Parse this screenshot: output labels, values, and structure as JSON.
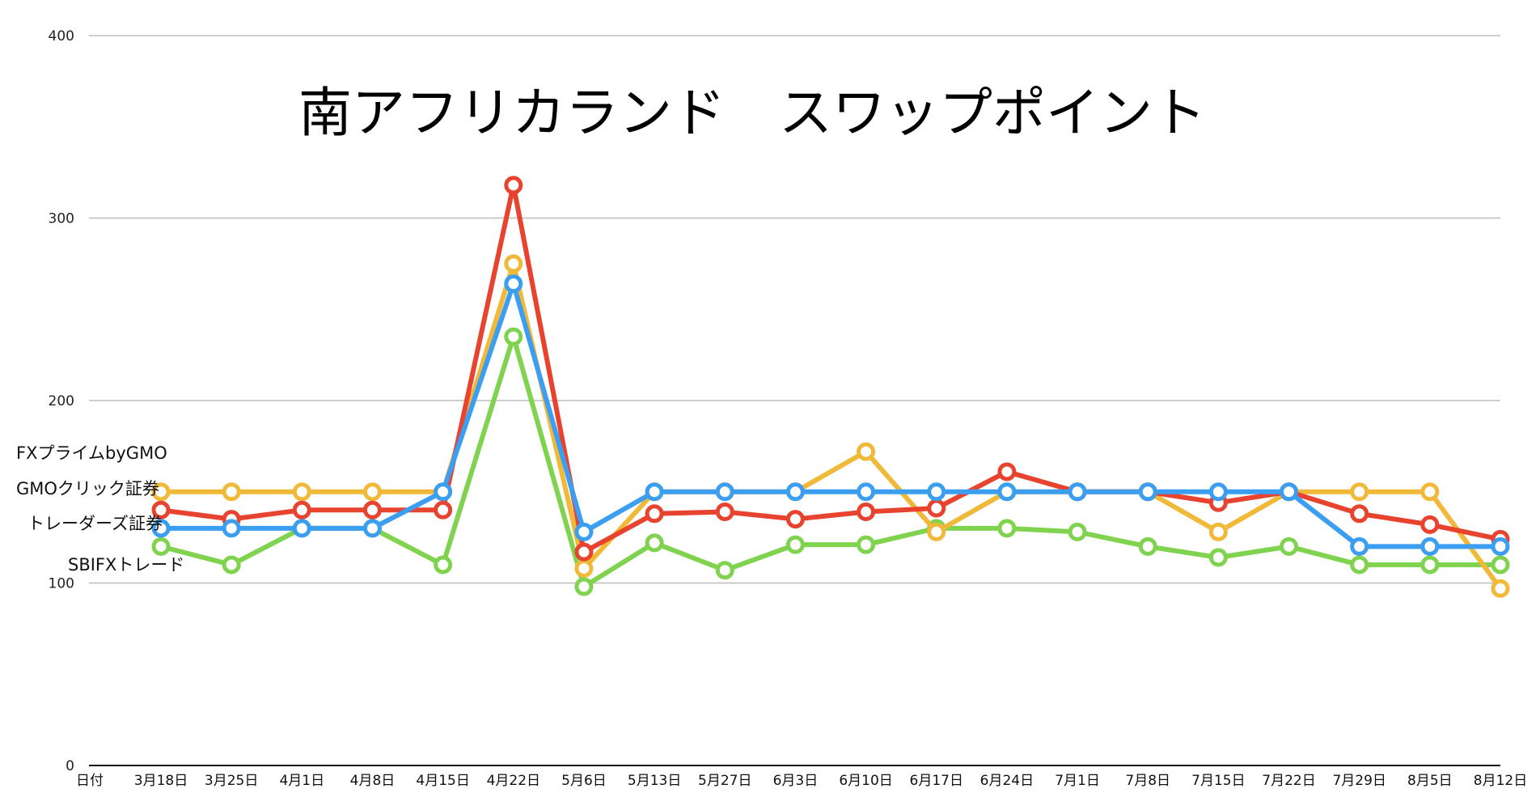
{
  "chart_data": {
    "type": "line",
    "title": "南アフリカランド　スワップポイント",
    "xlabel": "日付",
    "ylabel": "",
    "ylim": [
      0,
      400
    ],
    "yticks": [
      0,
      100,
      200,
      300,
      400
    ],
    "grid": true,
    "categories": [
      "3月18日",
      "3月25日",
      "4月1日",
      "4月8日",
      "4月15日",
      "4月22日",
      "5月6日",
      "5月13日",
      "5月27日",
      "6月3日",
      "6月10日",
      "6月17日",
      "6月24日",
      "7月1日",
      "7月8日",
      "7月15日",
      "7月22日",
      "7月29日",
      "8月5日",
      "8月12日"
    ],
    "series": [
      {
        "name": "FXプライムbyGMO",
        "color": "#e8432e",
        "values": [
          140,
          135,
          140,
          140,
          140,
          318,
          117,
          138,
          139,
          135,
          139,
          141,
          161,
          150,
          150,
          144,
          150,
          138,
          132,
          124
        ]
      },
      {
        "name": "GMOクリック証券",
        "color": "#f0b93a",
        "values": [
          150,
          150,
          150,
          150,
          150,
          275,
          108,
          150,
          150,
          150,
          172,
          128,
          150,
          150,
          150,
          128,
          150,
          150,
          150,
          97
        ]
      },
      {
        "name": "トレーダーズ証券",
        "color": "#3b9ef0",
        "values": [
          130,
          130,
          130,
          130,
          150,
          264,
          128,
          150,
          150,
          150,
          150,
          150,
          150,
          150,
          150,
          150,
          150,
          120,
          120,
          120
        ]
      },
      {
        "name": "SBIFXトレード",
        "color": "#7fd34e",
        "values": [
          120,
          110,
          130,
          130,
          110,
          235,
          98,
          122,
          107,
          121,
          121,
          130,
          130,
          128,
          120,
          114,
          120,
          110,
          110,
          110
        ]
      }
    ],
    "draw_order": [
      3,
      1,
      0,
      2
    ],
    "legend": "left, beside the first data point of each series"
  }
}
